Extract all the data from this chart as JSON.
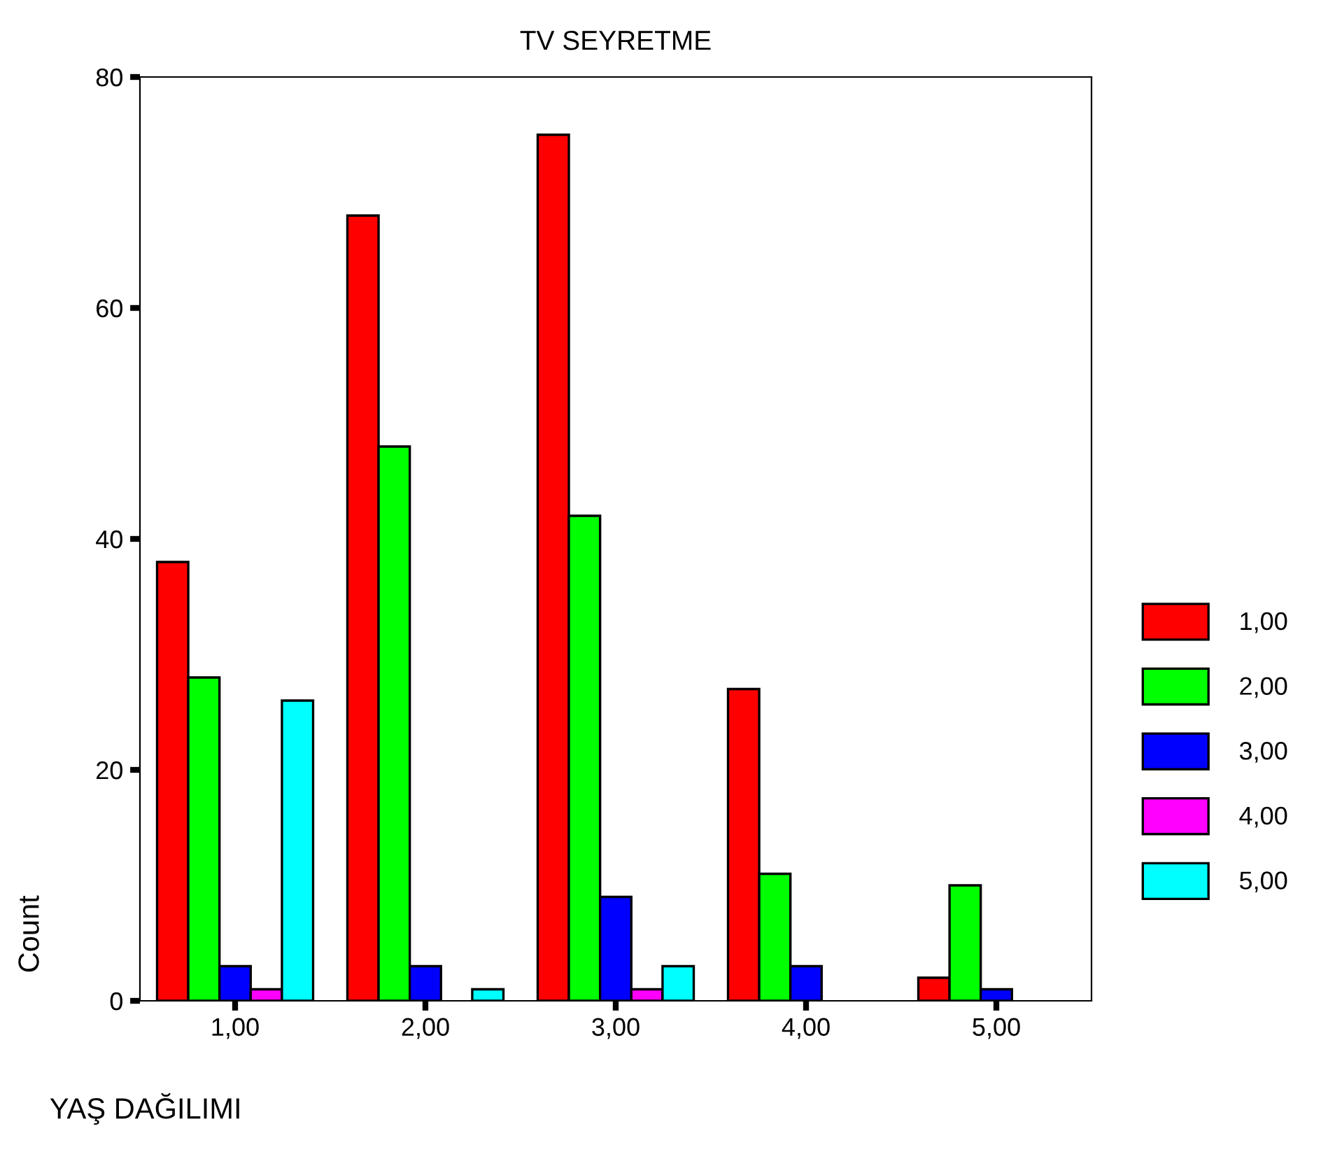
{
  "chart_data": {
    "type": "bar",
    "title": "TV SEYRETME",
    "xlabel": "YAŞ DAĞILIMI",
    "ylabel": "Count",
    "categories": [
      "1,00",
      "2,00",
      "3,00",
      "4,00",
      "5,00"
    ],
    "series": [
      {
        "name": "1,00",
        "color": "#ff0000",
        "values": [
          38,
          68,
          75,
          27,
          2
        ]
      },
      {
        "name": "2,00",
        "color": "#00ff00",
        "values": [
          28,
          48,
          42,
          11,
          10
        ]
      },
      {
        "name": "3,00",
        "color": "#0000ff",
        "values": [
          3,
          3,
          9,
          3,
          1
        ]
      },
      {
        "name": "4,00",
        "color": "#ff00ff",
        "values": [
          1,
          null,
          1,
          null,
          null
        ]
      },
      {
        "name": "5,00",
        "color": "#00ffff",
        "values": [
          26,
          1,
          3,
          null,
          null
        ]
      }
    ],
    "ylim": [
      0,
      80
    ],
    "yticks": [
      0,
      20,
      40,
      60,
      80
    ],
    "grid": false,
    "legend": "right"
  }
}
